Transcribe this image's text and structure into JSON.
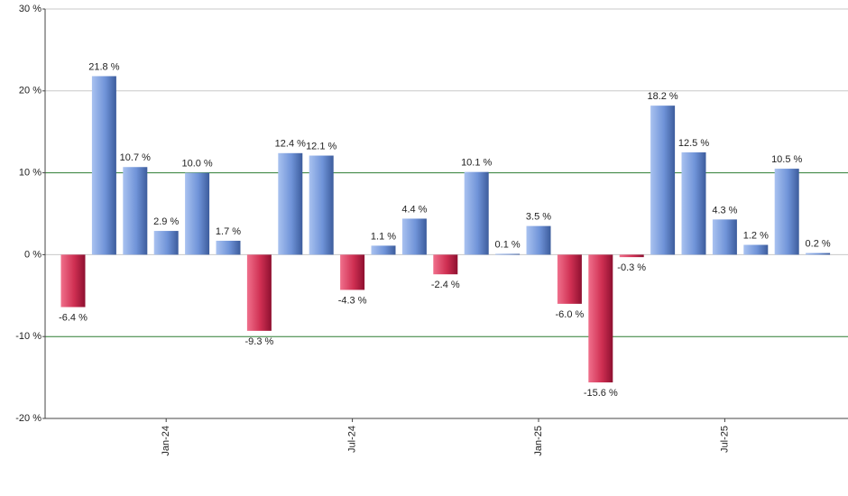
{
  "chart_data": {
    "type": "bar",
    "categories": [
      null,
      null,
      null,
      "Jan-24",
      null,
      null,
      null,
      null,
      null,
      "Jul-24",
      null,
      null,
      null,
      null,
      null,
      "Jan-25",
      null,
      null,
      null,
      null,
      null,
      "Jul-25",
      null,
      null,
      null
    ],
    "values": [
      -6.4,
      21.8,
      10.7,
      2.9,
      10.0,
      1.7,
      -9.3,
      12.4,
      12.1,
      -4.3,
      1.1,
      4.4,
      -2.4,
      10.1,
      0.1,
      3.5,
      -6.0,
      -15.6,
      -0.3,
      18.2,
      12.5,
      4.3,
      1.2,
      10.5,
      0.2
    ],
    "value_labels": [
      "-6.4 %",
      "21.8 %",
      "10.7 %",
      "2.9 %",
      "10.0 %",
      "1.7 %",
      "-9.3 %",
      "12.4 %",
      "12.1 %",
      "-4.3 %",
      "1.1 %",
      "4.4 %",
      "-2.4 %",
      "10.1 %",
      "0.1 %",
      "3.5 %",
      "-6.0 %",
      "-15.6 %",
      "-0.3 %",
      "18.2 %",
      "12.5 %",
      "4.3 %",
      "1.2 %",
      "10.5 %",
      "0.2 %"
    ],
    "positive_color": "#5b7fc7",
    "negative_color": "#c8284a",
    "ylim": [
      -20,
      30
    ],
    "yticks": [
      {
        "value": -20,
        "label": "-20 %"
      },
      {
        "value": -10,
        "label": "-10 %"
      },
      {
        "value": 0,
        "label": "0 %"
      },
      {
        "value": 10,
        "label": "10 %"
      },
      {
        "value": 20,
        "label": "20 %"
      },
      {
        "value": 30,
        "label": "30 %"
      }
    ],
    "grid": true,
    "reference_lines": [
      -10,
      10
    ],
    "reference_color": "#2e7d32"
  }
}
